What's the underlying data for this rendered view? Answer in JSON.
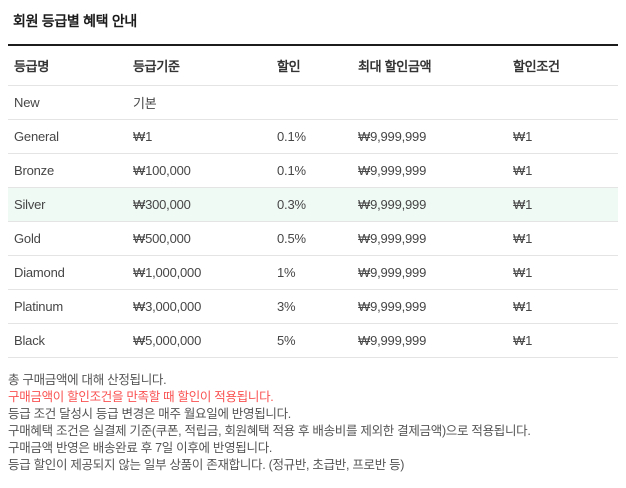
{
  "page": {
    "title": "회원 등급별 혜택 안내"
  },
  "table": {
    "columns": [
      "등급명",
      "등급기준",
      "할인",
      "최대 할인금액",
      "할인조건"
    ],
    "rows": [
      {
        "grade": "New",
        "criteria": "기본",
        "discount": "",
        "max_discount": "",
        "condition": "",
        "highlight": false
      },
      {
        "grade": "General",
        "criteria": "₩1",
        "discount": "0.1%",
        "max_discount": "₩9,999,999",
        "condition": "₩1",
        "highlight": false
      },
      {
        "grade": "Bronze",
        "criteria": "₩100,000",
        "discount": "0.1%",
        "max_discount": "₩9,999,999",
        "condition": "₩1",
        "highlight": false
      },
      {
        "grade": "Silver",
        "criteria": "₩300,000",
        "discount": "0.3%",
        "max_discount": "₩9,999,999",
        "condition": "₩1",
        "highlight": true
      },
      {
        "grade": "Gold",
        "criteria": "₩500,000",
        "discount": "0.5%",
        "max_discount": "₩9,999,999",
        "condition": "₩1",
        "highlight": false
      },
      {
        "grade": "Diamond",
        "criteria": "₩1,000,000",
        "discount": "1%",
        "max_discount": "₩9,999,999",
        "condition": "₩1",
        "highlight": false
      },
      {
        "grade": "Platinum",
        "criteria": "₩3,000,000",
        "discount": "3%",
        "max_discount": "₩9,999,999",
        "condition": "₩1",
        "highlight": false
      },
      {
        "grade": "Black",
        "criteria": "₩5,000,000",
        "discount": "5%",
        "max_discount": "₩9,999,999",
        "condition": "₩1",
        "highlight": false
      }
    ],
    "highlight_color": "#f0faf5"
  },
  "notes": {
    "emphasis_color": "#fa5252",
    "lines": [
      {
        "text": "총 구매금액에 대해 산정됩니다.",
        "emphasis": false
      },
      {
        "text": "구매금액이 할인조건을 만족할 때 할인이 적용됩니다.",
        "emphasis": true
      },
      {
        "text": "등급 조건 달성시 등급 변경은 매주 월요일에 반영됩니다.",
        "emphasis": false
      },
      {
        "text": "구매혜택 조건은 실결제 기준(쿠폰, 적립금, 회원혜택 적용 후 배송비를 제외한 결제금액)으로 적용됩니다.",
        "emphasis": false
      },
      {
        "text": "구매금액 반영은 배송완료 후 7일 이후에 반영됩니다.",
        "emphasis": false
      },
      {
        "text": "등급 할인이 제공되지 않는 일부 상품이 존재합니다. (정규반, 초급반, 프로반 등)",
        "emphasis": false
      }
    ]
  }
}
